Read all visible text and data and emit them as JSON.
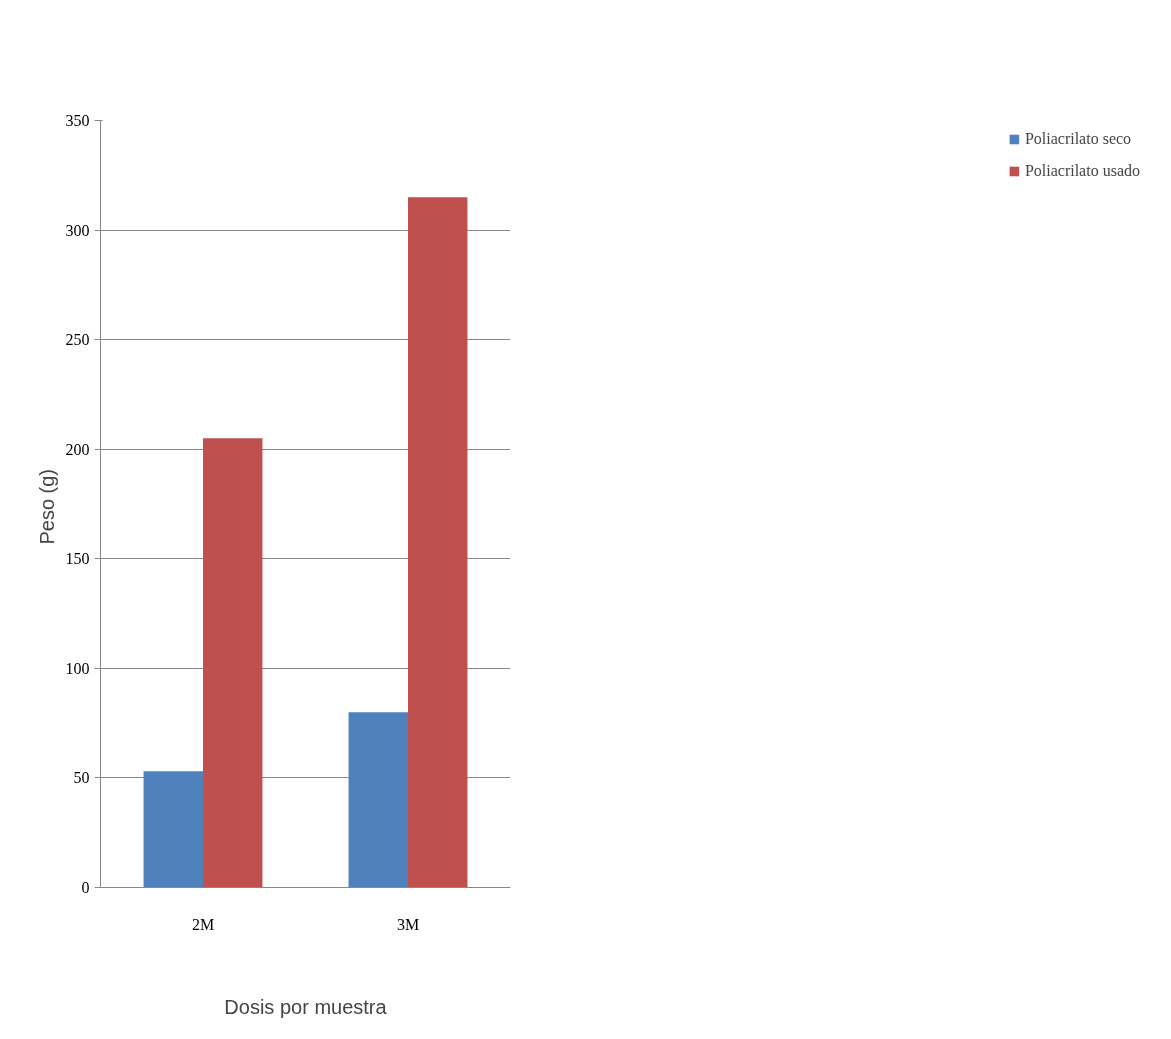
{
  "chart_data": {
    "type": "bar",
    "xlabel": "Dosis por muestra",
    "ylabel": "Peso  (g)",
    "categories": [
      "2M",
      "3M"
    ],
    "series": [
      {
        "name": "Poliacrilato seco",
        "color": "#4f81bd",
        "values": [
          53,
          80
        ]
      },
      {
        "name": "Poliacrilato usado",
        "color": "#c0504d",
        "values": [
          205,
          315
        ]
      }
    ],
    "ylim": [
      0,
      350
    ],
    "yticks": [
      0,
      50,
      100,
      150,
      200,
      250,
      300,
      350
    ],
    "grid": "y",
    "legend": "right"
  }
}
